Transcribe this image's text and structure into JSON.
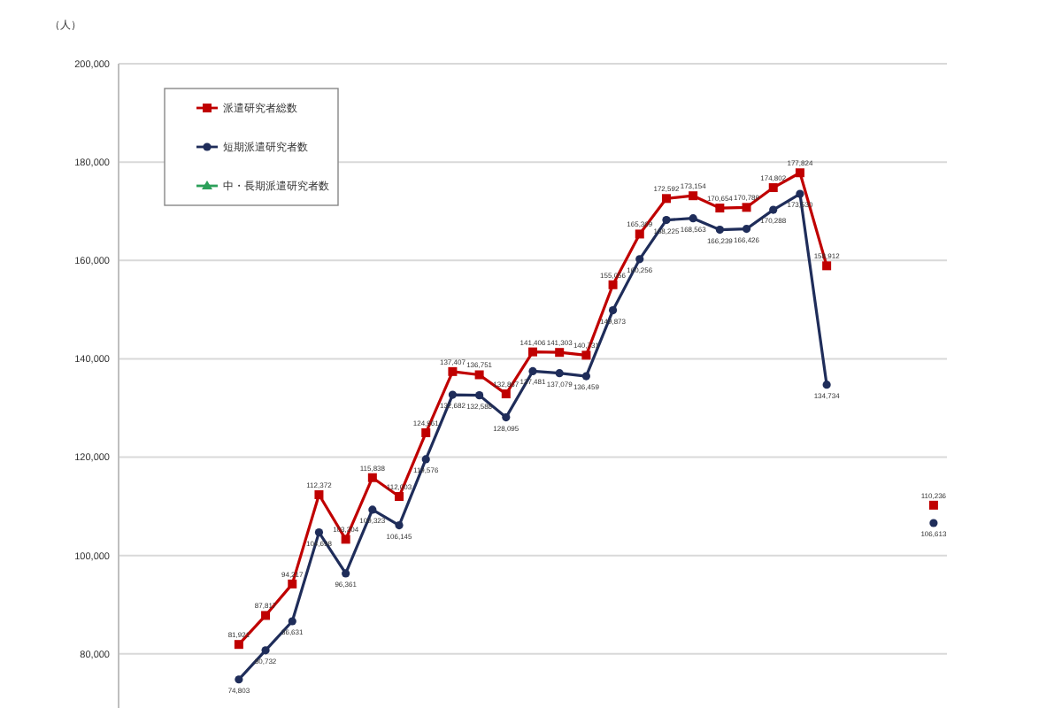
{
  "chart_data": {
    "type": "line",
    "ylabel": "（人）",
    "categories": [
      null,
      null,
      null,
      null,
      null,
      null,
      null,
      null,
      null,
      null,
      null,
      null,
      null,
      null,
      null,
      null,
      null,
      null,
      null,
      null,
      null,
      null,
      null,
      null,
      null,
      null,
      null,
      null,
      null,
      null,
      null
    ],
    "series": [
      {
        "name": "派遣研究者総数",
        "color": "#c00000",
        "marker": "square",
        "values": [
          null,
          null,
          null,
          null,
          81921,
          87817,
          94217,
          112372,
          103304,
          115838,
          112003,
          124961,
          137407,
          136751,
          132867,
          141406,
          141303,
          140731,
          155056,
          165369,
          172592,
          173154,
          170654,
          170789,
          174802,
          177824,
          158912,
          null,
          null,
          null,
          null
        ],
        "value_labels": [
          null,
          null,
          null,
          null,
          "81,921",
          "87,817",
          "94,217",
          "112,372",
          "103,304",
          "115,838",
          "112,003",
          "124,961",
          "137,407",
          "136,751",
          "132,867",
          "141,406",
          "141,303",
          "140,731",
          "155,056",
          "165,369",
          "172,592",
          "173,154",
          "170,654",
          "170,789",
          "174,802",
          "177,824",
          "158,912",
          null,
          null,
          null,
          null
        ]
      },
      {
        "name": "短期派遣研究者数",
        "color": "#1f2d5a",
        "marker": "circle",
        "values": [
          null,
          null,
          null,
          null,
          74803,
          80732,
          86631,
          104698,
          96361,
          109323,
          106145,
          119576,
          132682,
          132588,
          128095,
          137481,
          137079,
          136459,
          149873,
          160256,
          168225,
          168563,
          166239,
          166426,
          170288,
          173530,
          134734,
          null,
          null,
          null,
          null
        ],
        "value_labels": [
          null,
          null,
          null,
          null,
          "74,803",
          "80,732",
          "86,631",
          "104,698",
          "96,361",
          "109,323",
          "106,145",
          "119,576",
          "132,682",
          "132,588",
          "128,095",
          "137,481",
          "137,079",
          "136,459",
          "149,873",
          "160,256",
          "168,225",
          "168,563",
          "166,239",
          "166,426",
          "170,288",
          "173,530",
          "134,734",
          null,
          null,
          null,
          null
        ]
      },
      {
        "name": "中・長期派遣研究者数",
        "color": "#2ca05a",
        "marker": "triangle",
        "values": [
          null,
          null,
          null,
          null,
          null,
          null,
          null,
          null,
          null,
          null,
          null,
          null,
          null,
          null,
          null,
          null,
          null,
          null,
          null,
          null,
          null,
          null,
          null,
          null,
          null,
          null,
          null,
          null,
          null,
          null,
          null
        ]
      },
      {
        "color": "#c00000",
        "marker": "square",
        "values": [
          null,
          null,
          null,
          null,
          null,
          null,
          null,
          null,
          null,
          null,
          null,
          null,
          null,
          null,
          null,
          null,
          null,
          null,
          null,
          null,
          null,
          null,
          null,
          null,
          null,
          null,
          null,
          null,
          null,
          null,
          110236
        ],
        "value_labels": [
          null,
          null,
          null,
          null,
          null,
          null,
          null,
          null,
          null,
          null,
          null,
          null,
          null,
          null,
          null,
          null,
          null,
          null,
          null,
          null,
          null,
          null,
          null,
          null,
          null,
          null,
          null,
          null,
          null,
          null,
          "110,236"
        ]
      },
      {
        "color": "#1f2d5a",
        "marker": "circle",
        "values": [
          null,
          null,
          null,
          null,
          null,
          null,
          null,
          null,
          null,
          null,
          null,
          null,
          null,
          null,
          null,
          null,
          null,
          null,
          null,
          null,
          null,
          null,
          null,
          null,
          null,
          null,
          null,
          null,
          null,
          null,
          106613
        ],
        "value_labels": [
          null,
          null,
          null,
          null,
          null,
          null,
          null,
          null,
          null,
          null,
          null,
          null,
          null,
          null,
          null,
          null,
          null,
          null,
          null,
          null,
          null,
          null,
          null,
          null,
          null,
          null,
          null,
          null,
          null,
          null,
          "106,613"
        ]
      }
    ],
    "ylim": [
      69000,
      200000
    ],
    "yticks": [
      {
        "value": 80000,
        "label": "80,000"
      },
      {
        "value": 100000,
        "label": "100,000"
      },
      {
        "value": 120000,
        "label": "120,000"
      },
      {
        "value": 140000,
        "label": "140,000"
      },
      {
        "value": 160000,
        "label": "160,000"
      },
      {
        "value": 180000,
        "label": "180,000"
      },
      {
        "value": 200000,
        "label": "200,000"
      }
    ],
    "grid": "y",
    "legend": "top left",
    "tick_labels": "y"
  }
}
